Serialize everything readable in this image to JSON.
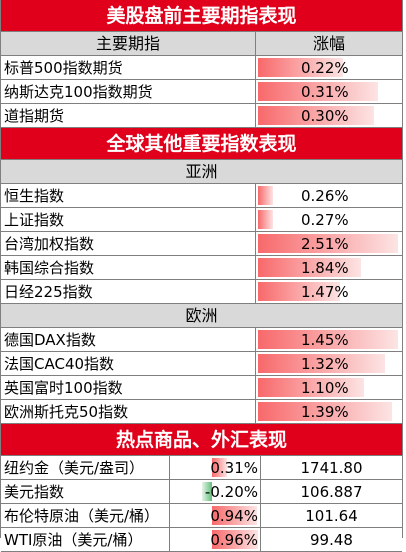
{
  "sections": {
    "us": {
      "title": "美股盘前主要期指表现",
      "col_name": "主要期指",
      "col_change": "涨幅",
      "rows": [
        {
          "name": "标普500指数期货",
          "change": "0.22%",
          "pct": 0.22
        },
        {
          "name": "纳斯达克100指数期货",
          "change": "0.31%",
          "pct": 0.31
        },
        {
          "name": "道指期货",
          "change": "0.30%",
          "pct": 0.3
        }
      ]
    },
    "global": {
      "title": "全球其他重要指数表现",
      "asia_label": "亚洲",
      "asia_rows": [
        {
          "name": "恒生指数",
          "change": "0.26%",
          "pct": 0.26
        },
        {
          "name": "上证指数",
          "change": "0.27%",
          "pct": 0.27
        },
        {
          "name": "台湾加权指数",
          "change": "2.51%",
          "pct": 2.51
        },
        {
          "name": "韩国综合指数",
          "change": "1.84%",
          "pct": 1.84
        },
        {
          "name": "日经225指数",
          "change": "1.47%",
          "pct": 1.47
        }
      ],
      "europe_label": "欧洲",
      "europe_rows": [
        {
          "name": "德国DAX指数",
          "change": "1.45%",
          "pct": 1.45
        },
        {
          "name": "法国CAC40指数",
          "change": "1.32%",
          "pct": 1.32
        },
        {
          "name": "英国富时100指数",
          "change": "1.10%",
          "pct": 1.1
        },
        {
          "name": "欧洲斯托克50指数",
          "change": "1.39%",
          "pct": 1.39
        }
      ]
    },
    "commodities": {
      "title": "热点商品、外汇表现",
      "rows": [
        {
          "name": "纽约金（美元/盎司）",
          "change": "0.31%",
          "pct": 0.31,
          "price": "1741.80"
        },
        {
          "name": "美元指数",
          "change": "-0.20%",
          "pct": -0.2,
          "price": "106.887"
        },
        {
          "name": "布伦特原油（美元/桶）",
          "change": "0.94%",
          "pct": 0.94,
          "price": "101.64"
        },
        {
          "name": "WTI原油（美元/桶）",
          "change": "0.96%",
          "pct": 0.96,
          "price": "99.48"
        }
      ]
    }
  },
  "colors": {
    "title_bg": "#e0001b",
    "subhead_bg": "#d9d9d9",
    "pos_bar": "#f8696b",
    "neg_bar": "#63be7b"
  }
}
